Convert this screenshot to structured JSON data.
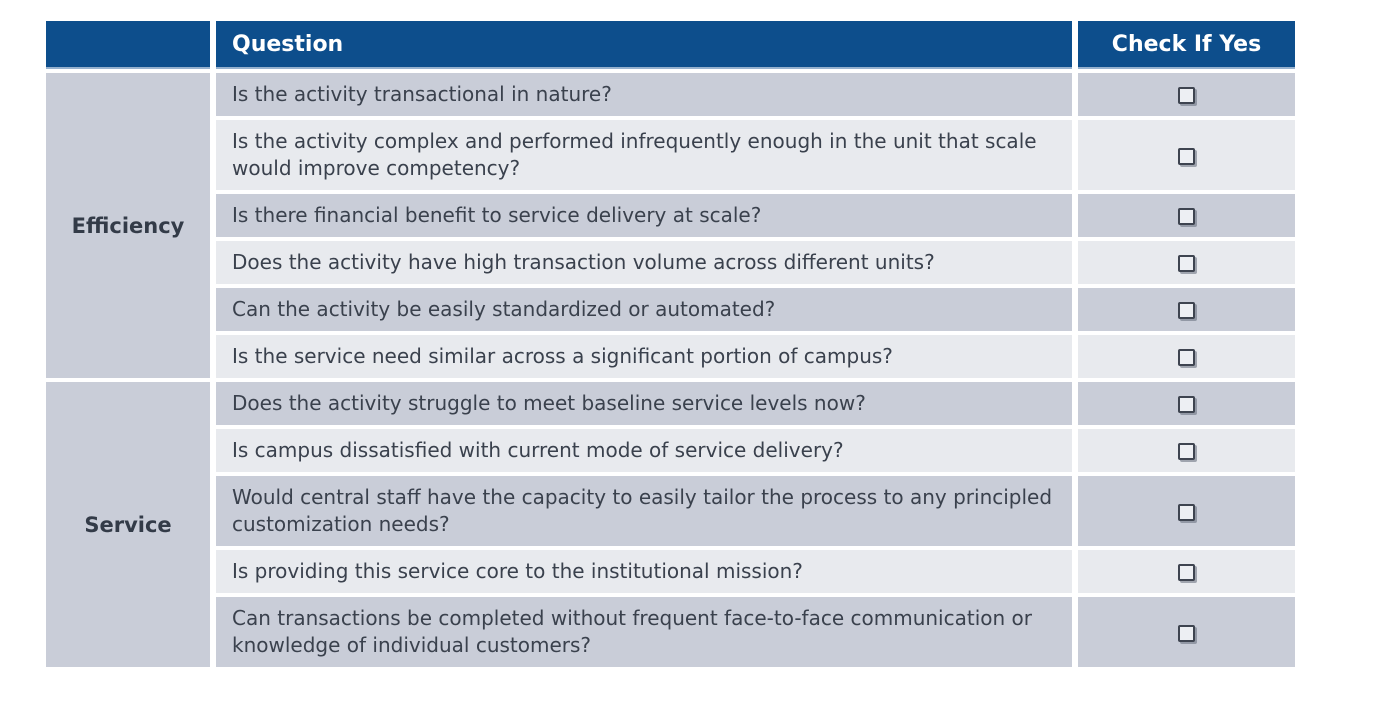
{
  "table": {
    "header": {
      "category": "",
      "question": "Question",
      "check": "Check If Yes"
    },
    "sections": [
      {
        "category": "Efficiency",
        "rows": [
          {
            "question": "Is the activity transactional in nature?",
            "checked": false
          },
          {
            "question": "Is the activity complex and performed infrequently enough in the unit that scale would improve competency?",
            "checked": false
          },
          {
            "question": "Is there financial benefit to service delivery at scale?",
            "checked": false
          },
          {
            "question": "Does the activity have high transaction volume across different units?",
            "checked": false
          },
          {
            "question": "Can the activity be easily standardized or automated?",
            "checked": false
          },
          {
            "question": "Is the service need similar across a significant portion of campus?",
            "checked": false
          }
        ]
      },
      {
        "category": "Service",
        "rows": [
          {
            "question": "Does the activity struggle to meet baseline service levels now?",
            "checked": false
          },
          {
            "question": "Is campus dissatisfied with current mode of service delivery?",
            "checked": false
          },
          {
            "question": "Would central staff have the capacity to easily tailor the process to any principled customization needs?",
            "checked": false
          },
          {
            "question": "Is providing this service core to the institutional mission?",
            "checked": false
          },
          {
            "question": "Can transactions be completed without frequent face-to-face communication or knowledge of individual customers?",
            "checked": false
          }
        ]
      }
    ]
  },
  "colors": {
    "header_bg": "#0D4E8C",
    "header_underline": "#96B1CE",
    "row_dark": "#C9CDD8",
    "row_light": "#E8EAEE",
    "text": "#3A414D",
    "category_text": "#333B48"
  }
}
